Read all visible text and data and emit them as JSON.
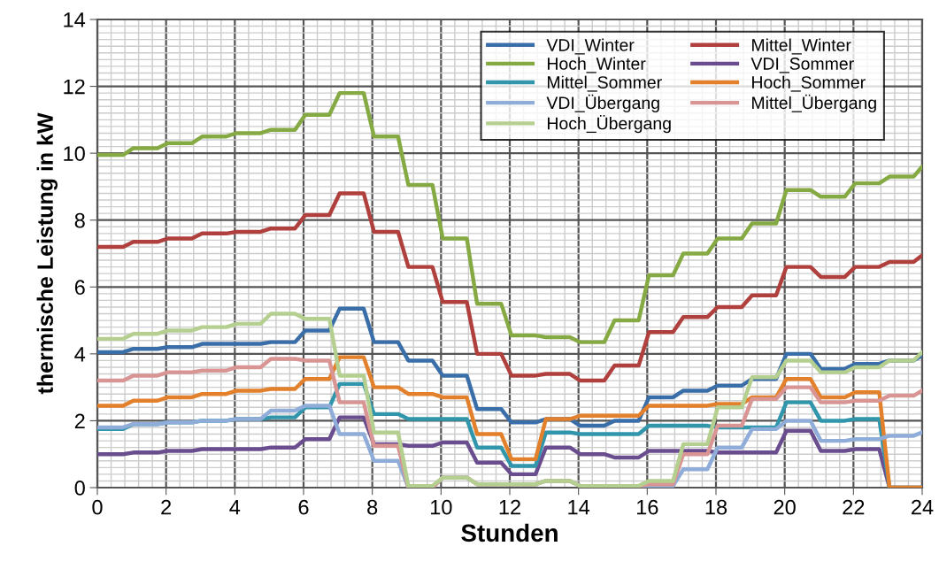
{
  "chart_data": {
    "type": "line",
    "xlabel": "Stunden",
    "ylabel": "thermische Leistung in kW",
    "x": [
      0,
      0.75,
      1.05,
      1.75,
      2.05,
      2.75,
      3.05,
      3.75,
      4.05,
      4.75,
      5.05,
      5.75,
      6.05,
      6.75,
      7.05,
      7.75,
      8.05,
      8.75,
      9.05,
      9.75,
      10.05,
      10.75,
      11.05,
      11.75,
      12.05,
      12.75,
      13.05,
      13.75,
      14.05,
      14.75,
      15.05,
      15.75,
      16.05,
      16.75,
      17.05,
      17.75,
      18.05,
      18.75,
      19.05,
      19.75,
      20.05,
      20.75,
      21.05,
      21.75,
      22.05,
      22.75,
      23.05,
      23.75,
      24
    ],
    "xlim": [
      0,
      24
    ],
    "xticks": [
      0,
      2,
      4,
      6,
      8,
      10,
      12,
      14,
      16,
      18,
      20,
      22,
      24
    ],
    "ylim": [
      0,
      14
    ],
    "yticks": [
      0,
      2,
      4,
      6,
      8,
      10,
      12,
      14
    ],
    "grid": true,
    "legend": "top right",
    "line_style": "solid",
    "marker": "none",
    "series": [
      {
        "name": "VDI_Winter",
        "color": "#3a6ea8",
        "values": [
          4.05,
          4.05,
          4.15,
          4.15,
          4.2,
          4.2,
          4.3,
          4.3,
          4.3,
          4.3,
          4.35,
          4.35,
          4.7,
          4.7,
          5.35,
          5.35,
          4.35,
          4.35,
          3.8,
          3.8,
          3.35,
          3.35,
          2.35,
          2.35,
          1.95,
          1.95,
          2.05,
          2.05,
          1.85,
          1.85,
          2.0,
          2.0,
          2.7,
          2.7,
          2.9,
          2.9,
          3.05,
          3.05,
          3.25,
          3.25,
          4.0,
          4.0,
          3.55,
          3.55,
          3.7,
          3.7,
          3.8,
          3.8,
          3.95
        ]
      },
      {
        "name": "Mittel_Winter",
        "color": "#b0403d",
        "values": [
          7.2,
          7.2,
          7.35,
          7.35,
          7.45,
          7.45,
          7.6,
          7.6,
          7.65,
          7.65,
          7.75,
          7.75,
          8.15,
          8.15,
          8.8,
          8.8,
          7.65,
          7.65,
          6.6,
          6.6,
          5.55,
          5.55,
          4.0,
          4.0,
          3.35,
          3.35,
          3.4,
          3.4,
          3.2,
          3.2,
          3.65,
          3.65,
          4.65,
          4.65,
          5.1,
          5.1,
          5.4,
          5.4,
          5.75,
          5.75,
          6.6,
          6.6,
          6.3,
          6.3,
          6.6,
          6.6,
          6.75,
          6.75,
          6.95
        ]
      },
      {
        "name": "Hoch_Winter",
        "color": "#86aa43",
        "values": [
          9.95,
          9.95,
          10.15,
          10.15,
          10.3,
          10.3,
          10.5,
          10.5,
          10.6,
          10.6,
          10.7,
          10.7,
          11.15,
          11.15,
          11.8,
          11.8,
          10.5,
          10.5,
          9.05,
          9.05,
          7.45,
          7.45,
          5.5,
          5.5,
          4.55,
          4.55,
          4.5,
          4.5,
          4.35,
          4.35,
          5.0,
          5.0,
          6.35,
          6.35,
          7.0,
          7.0,
          7.45,
          7.45,
          7.9,
          7.9,
          8.9,
          8.9,
          8.7,
          8.7,
          9.1,
          9.1,
          9.3,
          9.3,
          9.6
        ]
      },
      {
        "name": "VDI_Sommer",
        "color": "#6a4d8f",
        "values": [
          1.0,
          1.0,
          1.05,
          1.05,
          1.1,
          1.1,
          1.15,
          1.15,
          1.15,
          1.15,
          1.2,
          1.2,
          1.45,
          1.45,
          2.1,
          2.1,
          1.3,
          1.3,
          1.25,
          1.25,
          1.35,
          1.35,
          0.75,
          0.75,
          0.4,
          0.4,
          1.2,
          1.2,
          1.0,
          1.0,
          0.9,
          0.9,
          1.1,
          1.1,
          1.1,
          1.1,
          1.05,
          1.05,
          1.05,
          1.05,
          1.7,
          1.7,
          1.1,
          1.1,
          1.15,
          1.15,
          0.0,
          0.0,
          0.0
        ]
      },
      {
        "name": "Mittel_Sommer",
        "color": "#3196ab",
        "values": [
          1.75,
          1.75,
          1.9,
          1.9,
          1.95,
          1.95,
          2.0,
          2.0,
          2.05,
          2.05,
          2.1,
          2.1,
          2.4,
          2.4,
          3.1,
          3.1,
          2.2,
          2.2,
          2.05,
          2.05,
          2.05,
          2.05,
          1.2,
          1.2,
          0.65,
          0.65,
          1.65,
          1.65,
          1.6,
          1.6,
          1.6,
          1.6,
          1.85,
          1.85,
          1.85,
          1.85,
          1.8,
          1.8,
          1.8,
          1.8,
          2.55,
          2.55,
          2.0,
          2.0,
          2.05,
          2.05,
          0.0,
          0.0,
          0.0
        ]
      },
      {
        "name": "Hoch_Sommer",
        "color": "#e3802b",
        "values": [
          2.45,
          2.45,
          2.6,
          2.6,
          2.7,
          2.7,
          2.8,
          2.8,
          2.9,
          2.9,
          2.95,
          2.95,
          3.25,
          3.25,
          3.9,
          3.9,
          3.0,
          3.0,
          2.8,
          2.8,
          2.7,
          2.7,
          1.6,
          1.6,
          0.85,
          0.85,
          2.05,
          2.05,
          2.15,
          2.15,
          2.15,
          2.15,
          2.45,
          2.45,
          2.45,
          2.45,
          2.5,
          2.5,
          2.7,
          2.7,
          3.25,
          3.25,
          2.7,
          2.7,
          2.85,
          2.85,
          0.0,
          0.0,
          0.0
        ]
      },
      {
        "name": "VDI_Übergang",
        "color": "#8fadd8",
        "values": [
          1.8,
          1.8,
          1.9,
          1.9,
          1.95,
          1.95,
          2.0,
          2.0,
          2.05,
          2.05,
          2.3,
          2.3,
          2.45,
          2.45,
          1.6,
          1.6,
          0.8,
          0.8,
          0.0,
          0.0,
          0.3,
          0.3,
          0.1,
          0.1,
          0.1,
          0.1,
          0.2,
          0.2,
          0.05,
          null,
          null,
          0.05,
          0.05,
          0.05,
          0.55,
          0.55,
          1.2,
          1.2,
          1.75,
          1.75,
          2.0,
          2.0,
          1.4,
          1.4,
          1.45,
          1.45,
          1.55,
          1.55,
          1.65
        ]
      },
      {
        "name": "Mittel_Übergang",
        "color": "#d89594",
        "values": [
          3.2,
          3.2,
          3.35,
          3.35,
          3.45,
          3.45,
          3.5,
          3.5,
          3.6,
          3.6,
          3.85,
          3.85,
          3.8,
          3.8,
          2.55,
          2.55,
          1.25,
          1.25,
          0.0,
          0.0,
          0.3,
          0.3,
          0.1,
          0.1,
          0.1,
          0.1,
          0.2,
          0.2,
          0.05,
          null,
          null,
          0.05,
          0.1,
          0.1,
          1.0,
          1.0,
          1.85,
          1.85,
          2.65,
          2.65,
          3.0,
          3.0,
          2.55,
          2.55,
          2.6,
          2.6,
          2.75,
          2.75,
          2.9
        ]
      },
      {
        "name": "Hoch_Übergang",
        "color": "#b4cf8f",
        "values": [
          4.45,
          4.45,
          4.6,
          4.6,
          4.7,
          4.7,
          4.8,
          4.8,
          4.9,
          4.9,
          5.2,
          5.2,
          5.05,
          5.05,
          3.35,
          3.35,
          1.65,
          1.65,
          0.05,
          0.05,
          0.3,
          0.3,
          0.1,
          0.1,
          0.1,
          0.1,
          0.2,
          0.2,
          0.05,
          0.05,
          0.05,
          0.05,
          0.2,
          0.2,
          1.3,
          1.3,
          2.4,
          2.4,
          3.3,
          3.3,
          3.8,
          3.8,
          3.45,
          3.45,
          3.6,
          3.6,
          3.8,
          3.8,
          4.05
        ]
      }
    ]
  }
}
